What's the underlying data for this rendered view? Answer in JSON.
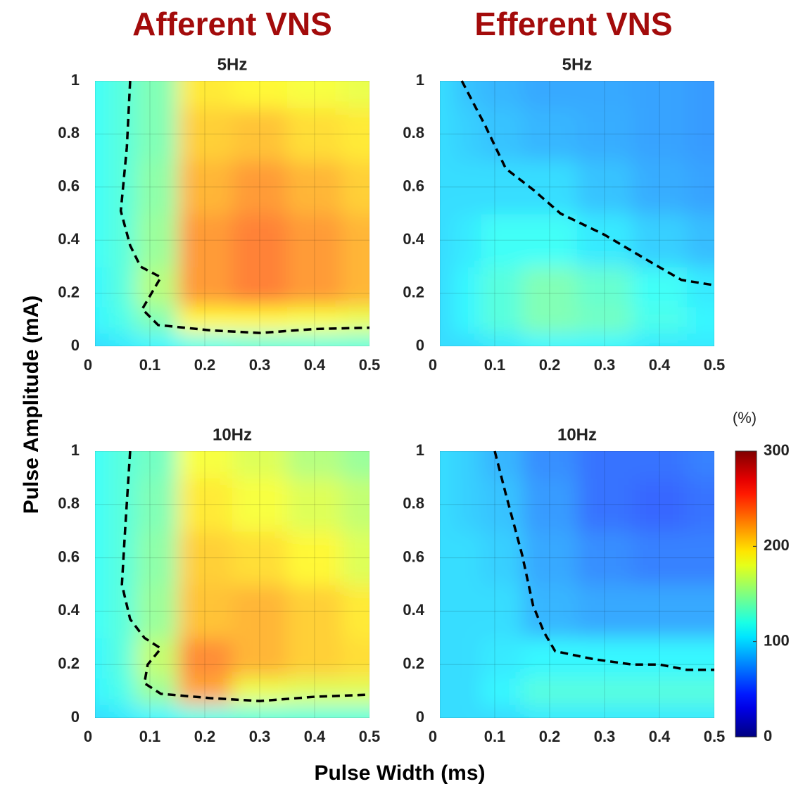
{
  "figure": {
    "column_titles": [
      "Afferent VNS",
      "Efferent VNS"
    ],
    "xlabel": "Pulse Width (ms)",
    "ylabel": "Pulse Amplitude (mA)",
    "colorbar": {
      "label": "(%)",
      "colormap": "jet",
      "clim": [
        0,
        300
      ],
      "ticks": [
        0,
        100,
        200,
        300
      ]
    }
  },
  "chart_data": [
    {
      "type": "contour",
      "title": "5Hz",
      "x": [
        0,
        0.05,
        0.1,
        0.2,
        0.3,
        0.4,
        0.5
      ],
      "y": [
        0,
        0.1,
        0.2,
        0.4,
        0.6,
        0.8,
        1
      ],
      "z": [
        [
          100,
          105,
          110,
          120,
          125,
          125,
          125
        ],
        [
          110,
          120,
          140,
          190,
          190,
          185,
          180
        ],
        [
          110,
          125,
          160,
          225,
          235,
          225,
          215
        ],
        [
          115,
          125,
          150,
          225,
          235,
          225,
          215
        ],
        [
          115,
          125,
          145,
          215,
          225,
          215,
          205
        ],
        [
          115,
          125,
          140,
          205,
          210,
          200,
          195
        ],
        [
          115,
          125,
          140,
          195,
          190,
          185,
          180
        ]
      ],
      "xlim": [
        0,
        0.5
      ],
      "ylim": [
        0,
        1
      ],
      "xticks": [
        0,
        0.1,
        0.2,
        0.3,
        0.4,
        0.5
      ],
      "yticks": [
        0,
        0.2,
        0.4,
        0.6,
        0.8,
        1
      ],
      "grid": true,
      "threshold": {
        "x": [
          0.064,
          0.058,
          0.047,
          0.064,
          0.083,
          0.12,
          0.103,
          0.086,
          0.115,
          0.21,
          0.3,
          0.4,
          0.5
        ],
        "y": [
          1,
          0.75,
          0.51,
          0.38,
          0.3,
          0.26,
          0.2,
          0.14,
          0.08,
          0.06,
          0.05,
          0.065,
          0.07
        ]
      }
    },
    {
      "type": "contour",
      "title": "5Hz",
      "x": [
        0,
        0.05,
        0.1,
        0.2,
        0.3,
        0.4,
        0.5
      ],
      "y": [
        0,
        0.1,
        0.2,
        0.4,
        0.6,
        0.8,
        1
      ],
      "z": [
        [
          100,
          100,
          105,
          110,
          110,
          105,
          105
        ],
        [
          100,
          110,
          125,
          140,
          135,
          120,
          110
        ],
        [
          100,
          110,
          125,
          140,
          130,
          115,
          105
        ],
        [
          100,
          105,
          115,
          115,
          105,
          95,
          88
        ],
        [
          100,
          100,
          100,
          100,
          90,
          82,
          78
        ],
        [
          100,
          95,
          90,
          85,
          82,
          78,
          75
        ],
        [
          100,
          90,
          85,
          80,
          80,
          78,
          75
        ]
      ],
      "xlim": [
        0,
        0.5
      ],
      "ylim": [
        0,
        1
      ],
      "xticks": [
        0,
        0.1,
        0.2,
        0.3,
        0.4,
        0.5
      ],
      "yticks": [
        0,
        0.2,
        0.4,
        0.6,
        0.8,
        1
      ],
      "grid": true,
      "threshold": {
        "x": [
          0.04,
          0.083,
          0.12,
          0.17,
          0.22,
          0.3,
          0.39,
          0.44,
          0.5
        ],
        "y": [
          1,
          0.83,
          0.67,
          0.59,
          0.5,
          0.42,
          0.31,
          0.25,
          0.23
        ]
      }
    },
    {
      "type": "contour",
      "title": "10Hz",
      "x": [
        0,
        0.05,
        0.1,
        0.2,
        0.3,
        0.4,
        0.5
      ],
      "y": [
        0,
        0.1,
        0.2,
        0.4,
        0.6,
        0.8,
        1
      ],
      "z": [
        [
          100,
          105,
          110,
          120,
          125,
          125,
          125
        ],
        [
          110,
          120,
          150,
          220,
          180,
          175,
          175
        ],
        [
          110,
          125,
          165,
          230,
          215,
          205,
          200
        ],
        [
          115,
          125,
          150,
          210,
          215,
          205,
          195
        ],
        [
          115,
          125,
          145,
          205,
          200,
          190,
          175
        ],
        [
          115,
          125,
          140,
          195,
          185,
          175,
          165
        ],
        [
          115,
          125,
          135,
          185,
          175,
          160,
          150
        ]
      ],
      "xlim": [
        0,
        0.5
      ],
      "ylim": [
        0,
        1
      ],
      "xticks": [
        0,
        0.1,
        0.2,
        0.3,
        0.4,
        0.5
      ],
      "yticks": [
        0,
        0.2,
        0.4,
        0.6,
        0.8,
        1
      ],
      "grid": true,
      "threshold": {
        "x": [
          0.064,
          0.055,
          0.049,
          0.064,
          0.09,
          0.12,
          0.096,
          0.09,
          0.12,
          0.21,
          0.3,
          0.4,
          0.5
        ],
        "y": [
          1,
          0.71,
          0.5,
          0.37,
          0.3,
          0.26,
          0.2,
          0.13,
          0.09,
          0.074,
          0.063,
          0.079,
          0.087
        ]
      }
    },
    {
      "type": "contour",
      "title": "10Hz",
      "x": [
        0,
        0.05,
        0.1,
        0.2,
        0.3,
        0.4,
        0.5
      ],
      "y": [
        0,
        0.1,
        0.2,
        0.4,
        0.6,
        0.8,
        1
      ],
      "z": [
        [
          100,
          100,
          100,
          105,
          105,
          105,
          105
        ],
        [
          100,
          100,
          110,
          125,
          125,
          125,
          125
        ],
        [
          100,
          100,
          105,
          110,
          110,
          110,
          110
        ],
        [
          100,
          100,
          100,
          85,
          80,
          80,
          80
        ],
        [
          100,
          100,
          95,
          80,
          70,
          65,
          65
        ],
        [
          100,
          95,
          90,
          75,
          60,
          55,
          60
        ],
        [
          100,
          95,
          85,
          70,
          60,
          60,
          65
        ]
      ],
      "xlim": [
        0,
        0.5
      ],
      "ylim": [
        0,
        1
      ],
      "xticks": [
        0,
        0.1,
        0.2,
        0.3,
        0.4,
        0.5
      ],
      "yticks": [
        0,
        0.2,
        0.4,
        0.6,
        0.8,
        1
      ],
      "grid": true,
      "threshold": {
        "x": [
          0.1,
          0.12,
          0.15,
          0.17,
          0.19,
          0.21,
          0.28,
          0.35,
          0.4,
          0.45,
          0.5
        ],
        "y": [
          1,
          0.84,
          0.61,
          0.42,
          0.32,
          0.25,
          0.22,
          0.2,
          0.2,
          0.18,
          0.18
        ]
      }
    }
  ]
}
